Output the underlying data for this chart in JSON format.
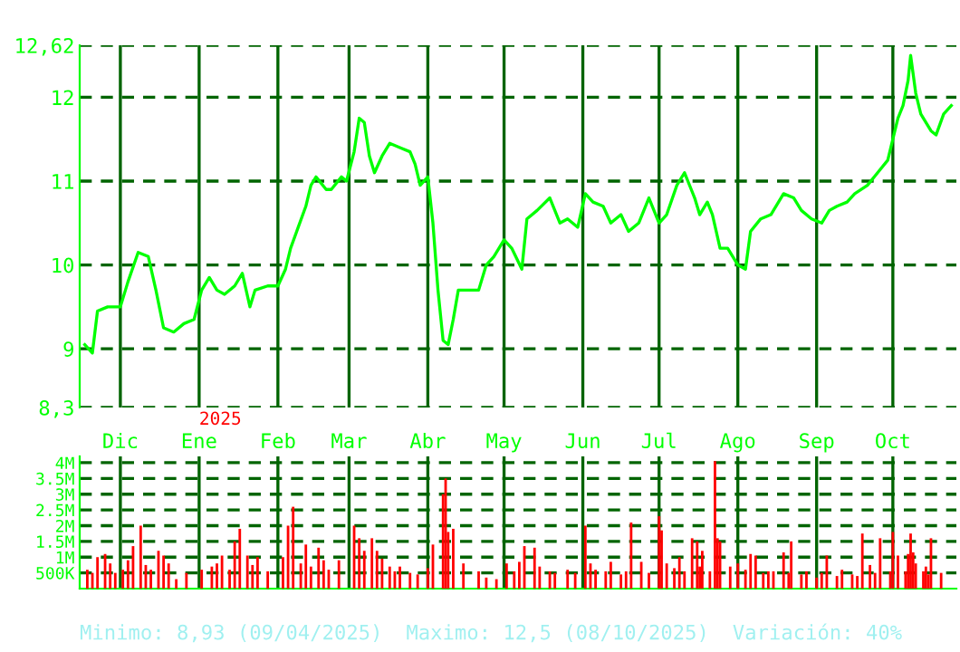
{
  "chart_data": [
    {
      "type": "line",
      "x": [
        "2024-11-17",
        "2024-11-20",
        "2024-11-22",
        "2024-11-26",
        "2024-12-01",
        "2024-12-04",
        "2024-12-08",
        "2024-12-12",
        "2024-12-15",
        "2024-12-18",
        "2024-12-22",
        "2024-12-26",
        "2024-12-30",
        "2025-01-02",
        "2025-01-05",
        "2025-01-08",
        "2025-01-11",
        "2025-01-15",
        "2025-01-18",
        "2025-01-21",
        "2025-01-23",
        "2025-01-28",
        "2025-02-01",
        "2025-02-04",
        "2025-02-06",
        "2025-02-09",
        "2025-02-12",
        "2025-02-14",
        "2025-02-16",
        "2025-02-20",
        "2025-02-22",
        "2025-02-26",
        "2025-02-28",
        "2025-03-03",
        "2025-03-05",
        "2025-03-07",
        "2025-03-09",
        "2025-03-11",
        "2025-03-14",
        "2025-03-17",
        "2025-03-21",
        "2025-03-25",
        "2025-03-27",
        "2025-03-29",
        "2025-04-01",
        "2025-04-03",
        "2025-04-05",
        "2025-04-07",
        "2025-04-09",
        "2025-04-11",
        "2025-04-13",
        "2025-04-18",
        "2025-04-21",
        "2025-04-24",
        "2025-04-27",
        "2025-05-01",
        "2025-05-04",
        "2025-05-08",
        "2025-05-10",
        "2025-05-14",
        "2025-05-19",
        "2025-05-23",
        "2025-05-26",
        "2025-05-30",
        "2025-06-02",
        "2025-06-05",
        "2025-06-09",
        "2025-06-12",
        "2025-06-16",
        "2025-06-19",
        "2025-06-23",
        "2025-06-27",
        "2025-07-01",
        "2025-07-04",
        "2025-07-08",
        "2025-07-11",
        "2025-07-15",
        "2025-07-17",
        "2025-07-20",
        "2025-07-22",
        "2025-07-25",
        "2025-07-28",
        "2025-08-01",
        "2025-08-04",
        "2025-08-06",
        "2025-08-10",
        "2025-08-14",
        "2025-08-19",
        "2025-08-23",
        "2025-08-26",
        "2025-08-30",
        "2025-09-03",
        "2025-09-06",
        "2025-09-09",
        "2025-09-13",
        "2025-09-16",
        "2025-09-21",
        "2025-09-25",
        "2025-09-29",
        "2025-10-01",
        "2025-10-03",
        "2025-10-05",
        "2025-10-07",
        "2025-10-08",
        "2025-10-10",
        "2025-10-12",
        "2025-10-16",
        "2025-10-18",
        "2025-10-21",
        "2025-10-24"
      ],
      "series": [
        {
          "color": "#00ff00",
          "values": [
            9.05,
            8.95,
            9.45,
            9.5,
            9.5,
            9.8,
            10.15,
            10.1,
            9.7,
            9.25,
            9.2,
            9.3,
            9.35,
            9.7,
            9.85,
            9.7,
            9.65,
            9.75,
            9.9,
            9.5,
            9.7,
            9.75,
            9.75,
            9.95,
            10.2,
            10.45,
            10.7,
            10.95,
            11.05,
            10.9,
            10.9,
            11.05,
            11.0,
            11.35,
            11.75,
            11.7,
            11.3,
            11.1,
            11.3,
            11.45,
            11.4,
            11.35,
            11.2,
            10.95,
            11.05,
            10.5,
            9.7,
            9.1,
            9.05,
            9.35,
            9.7,
            9.7,
            9.7,
            10.0,
            10.1,
            10.3,
            10.2,
            9.95,
            10.55,
            10.65,
            10.8,
            10.5,
            10.55,
            10.45,
            10.85,
            10.75,
            10.7,
            10.5,
            10.6,
            10.4,
            10.5,
            10.8,
            10.5,
            10.6,
            10.95,
            11.1,
            10.8,
            10.6,
            10.75,
            10.6,
            10.2,
            10.2,
            10.0,
            9.95,
            10.4,
            10.55,
            10.6,
            10.85,
            10.8,
            10.65,
            10.55,
            10.5,
            10.65,
            10.7,
            10.75,
            10.85,
            10.95,
            11.1,
            11.25,
            11.5,
            11.75,
            11.9,
            12.2,
            12.5,
            12.05,
            11.8,
            11.6,
            11.55,
            11.8,
            11.9
          ]
        }
      ],
      "xlim": [
        "2024-11-15",
        "2025-10-26"
      ],
      "xticks": [
        {
          "value": "2024-12-01",
          "label": "Dic"
        },
        {
          "value": "2025-01-01",
          "label": "Ene"
        },
        {
          "value": "2025-02-01",
          "label": "Feb"
        },
        {
          "value": "2025-03-01",
          "label": "Mar"
        },
        {
          "value": "2025-04-01",
          "label": "Abr"
        },
        {
          "value": "2025-05-01",
          "label": "May"
        },
        {
          "value": "2025-06-01",
          "label": "Jun"
        },
        {
          "value": "2025-07-01",
          "label": "Jul"
        },
        {
          "value": "2025-08-01",
          "label": "Ago"
        },
        {
          "value": "2025-09-01",
          "label": "Sep"
        },
        {
          "value": "2025-10-01",
          "label": "Oct"
        }
      ],
      "ylim": [
        8.3,
        12.62
      ],
      "yticks": [
        {
          "value": 8.3,
          "label": "8,3"
        },
        9,
        10,
        11,
        12,
        {
          "value": 12.62,
          "label": "12,62"
        }
      ],
      "grid": true,
      "annotations": [
        "2025"
      ]
    },
    {
      "type": "bar",
      "x": [
        "2024-11-18",
        "2024-11-20",
        "2024-11-22",
        "2024-11-25",
        "2024-11-27",
        "2024-11-29",
        "2024-12-02",
        "2024-12-04",
        "2024-12-06",
        "2024-12-09",
        "2024-12-11",
        "2024-12-13",
        "2024-12-16",
        "2024-12-18",
        "2024-12-20",
        "2024-12-23",
        "2024-12-27",
        "2025-01-02",
        "2025-01-06",
        "2025-01-08",
        "2025-01-10",
        "2025-01-13",
        "2025-01-15",
        "2025-01-17",
        "2025-01-20",
        "2025-01-22",
        "2025-01-24",
        "2025-01-28",
        "2025-02-03",
        "2025-02-05",
        "2025-02-07",
        "2025-02-10",
        "2025-02-12",
        "2025-02-14",
        "2025-02-17",
        "2025-02-19",
        "2025-02-21",
        "2025-02-25",
        "2025-03-03",
        "2025-03-05",
        "2025-03-07",
        "2025-03-10",
        "2025-03-12",
        "2025-03-14",
        "2025-03-17",
        "2025-03-19",
        "2025-03-21",
        "2025-03-25",
        "2025-03-28",
        "2025-04-01",
        "2025-04-03",
        "2025-04-07",
        "2025-04-08",
        "2025-04-09",
        "2025-04-11",
        "2025-04-15",
        "2025-04-21",
        "2025-04-24",
        "2025-04-28",
        "2025-05-02",
        "2025-05-05",
        "2025-05-07",
        "2025-05-09",
        "2025-05-13",
        "2025-05-15",
        "2025-05-19",
        "2025-05-21",
        "2025-05-26",
        "2025-05-29",
        "2025-06-02",
        "2025-06-04",
        "2025-06-06",
        "2025-06-10",
        "2025-06-12",
        "2025-06-16",
        "2025-06-18",
        "2025-06-20",
        "2025-06-24",
        "2025-06-27",
        "2025-07-01",
        "2025-07-02",
        "2025-07-04",
        "2025-07-07",
        "2025-07-09",
        "2025-07-11",
        "2025-07-14",
        "2025-07-16",
        "2025-07-17",
        "2025-07-18",
        "2025-07-21",
        "2025-07-23",
        "2025-07-24",
        "2025-07-25",
        "2025-07-29",
        "2025-08-01",
        "2025-08-04",
        "2025-08-06",
        "2025-08-08",
        "2025-08-11",
        "2025-08-13",
        "2025-08-15",
        "2025-08-19",
        "2025-08-21",
        "2025-08-22",
        "2025-08-26",
        "2025-08-28",
        "2025-09-01",
        "2025-09-03",
        "2025-09-05",
        "2025-09-09",
        "2025-09-11",
        "2025-09-15",
        "2025-09-17",
        "2025-09-19",
        "2025-09-22",
        "2025-09-24",
        "2025-09-26",
        "2025-09-30",
        "2025-10-01",
        "2025-10-03",
        "2025-10-06",
        "2025-10-07",
        "2025-10-08",
        "2025-10-09",
        "2025-10-10",
        "2025-10-13",
        "2025-10-14",
        "2025-10-15",
        "2025-10-16",
        "2025-10-20"
      ],
      "values": [
        600000,
        500000,
        1000000,
        1100000,
        800000,
        500000,
        600000,
        900000,
        1350000,
        2000000,
        750000,
        600000,
        1200000,
        1050000,
        800000,
        300000,
        500000,
        600000,
        700000,
        800000,
        1050000,
        600000,
        1500000,
        1900000,
        1050000,
        750000,
        1000000,
        550000,
        1000000,
        2000000,
        2600000,
        800000,
        1400000,
        700000,
        1300000,
        900000,
        600000,
        900000,
        2000000,
        1600000,
        1200000,
        1600000,
        1200000,
        950000,
        700000,
        550000,
        700000,
        500000,
        450000,
        650000,
        1400000,
        3000000,
        3500000,
        1800000,
        1900000,
        800000,
        550000,
        350000,
        300000,
        800000,
        550000,
        850000,
        1350000,
        1300000,
        700000,
        550000,
        500000,
        600000,
        500000,
        2000000,
        800000,
        600000,
        550000,
        850000,
        450000,
        550000,
        2100000,
        850000,
        500000,
        2300000,
        1850000,
        800000,
        650000,
        1000000,
        550000,
        1600000,
        1500000,
        700000,
        1200000,
        550000,
        4050000,
        1600000,
        1500000,
        700000,
        800000,
        600000,
        1100000,
        1050000,
        500000,
        550000,
        550000,
        1150000,
        500000,
        1500000,
        450000,
        550000,
        350000,
        500000,
        1050000,
        400000,
        600000,
        450000,
        400000,
        1750000,
        750000,
        500000,
        1600000,
        550000,
        1800000,
        1050000,
        550000,
        1100000,
        1750000,
        1150000,
        800000,
        550000,
        700000,
        450000,
        1600000,
        500000
      ],
      "color": "#ff0000",
      "xlim": [
        "2024-11-15",
        "2025-10-26"
      ],
      "xticks": [
        {
          "value": "2024-12-01",
          "label": null
        },
        {
          "value": "2025-01-01",
          "label": null
        },
        {
          "value": "2025-02-01",
          "label": null
        },
        {
          "value": "2025-03-01",
          "label": null
        },
        {
          "value": "2025-04-01",
          "label": null
        },
        {
          "value": "2025-05-01",
          "label": null
        },
        {
          "value": "2025-06-01",
          "label": null
        },
        {
          "value": "2025-07-01",
          "label": null
        },
        {
          "value": "2025-08-01",
          "label": null
        },
        {
          "value": "2025-09-01",
          "label": null
        },
        {
          "value": "2025-10-01",
          "label": null
        }
      ],
      "ylim": [
        0,
        4200000
      ],
      "yticks": [
        {
          "value": 500000,
          "label": "500K"
        },
        {
          "value": 1000000,
          "label": "1M"
        },
        {
          "value": 1500000,
          "label": "1.5M"
        },
        {
          "value": 2000000,
          "label": "2M"
        },
        {
          "value": 2500000,
          "label": "2.5M"
        },
        {
          "value": 3000000,
          "label": "3M"
        },
        {
          "value": 3500000,
          "label": "3.5M"
        },
        {
          "value": 4000000,
          "label": "4M"
        }
      ],
      "tick_labels": "y",
      "grid": true,
      "annotations": [
        "Minimo: 8,93 (09/04/2025)",
        "Maximo: 12,5 (08/10/2025)",
        "Variación: 40%"
      ]
    }
  ]
}
